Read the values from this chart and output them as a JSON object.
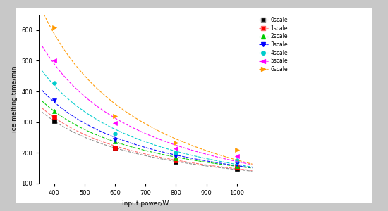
{
  "series": [
    {
      "label": "0scale",
      "color": "#888888",
      "marker": "s",
      "markercolor": "#000000",
      "x": [
        400,
        600,
        800,
        1000
      ],
      "y": [
        305,
        215,
        170,
        148
      ]
    },
    {
      "label": "1scale",
      "color": "#ff6666",
      "marker": "s",
      "markercolor": "#ff0000",
      "x": [
        400,
        600,
        800,
        1000
      ],
      "y": [
        318,
        218,
        175,
        152
      ]
    },
    {
      "label": "2scale",
      "color": "#00cc00",
      "marker": "^",
      "markercolor": "#00cc00",
      "x": [
        400,
        600,
        800,
        1000
      ],
      "y": [
        336,
        238,
        183,
        158
      ]
    },
    {
      "label": "3scale",
      "color": "#0000ff",
      "marker": "v",
      "markercolor": "#0000ff",
      "x": [
        400,
        600,
        800,
        1000
      ],
      "y": [
        370,
        243,
        190,
        165
      ]
    },
    {
      "label": "4scale",
      "color": "#00cccc",
      "marker": "o",
      "markercolor": "#00cccc",
      "x": [
        400,
        600,
        800,
        1000
      ],
      "y": [
        428,
        262,
        200,
        175
      ]
    },
    {
      "label": "5scale",
      "color": "#ff00ff",
      "marker": "<",
      "markercolor": "#ff00ff",
      "x": [
        400,
        600,
        800,
        1000
      ],
      "y": [
        500,
        296,
        215,
        190
      ]
    },
    {
      "label": "6scale",
      "color": "#ff9900",
      "marker": ">",
      "markercolor": "#ff9900",
      "x": [
        400,
        600,
        800,
        1000
      ],
      "y": [
        609,
        320,
        232,
        210
      ]
    }
  ],
  "xlabel": "input power/W",
  "ylabel": "ice melting time/min",
  "xlim": [
    350,
    1050
  ],
  "ylim": [
    100,
    650
  ],
  "xticks": [
    400,
    500,
    600,
    700,
    800,
    900,
    1000
  ],
  "yticks": [
    100,
    200,
    300,
    400,
    500,
    600
  ],
  "background_color": "#ffffff",
  "figure_background": "#c8c8c8"
}
